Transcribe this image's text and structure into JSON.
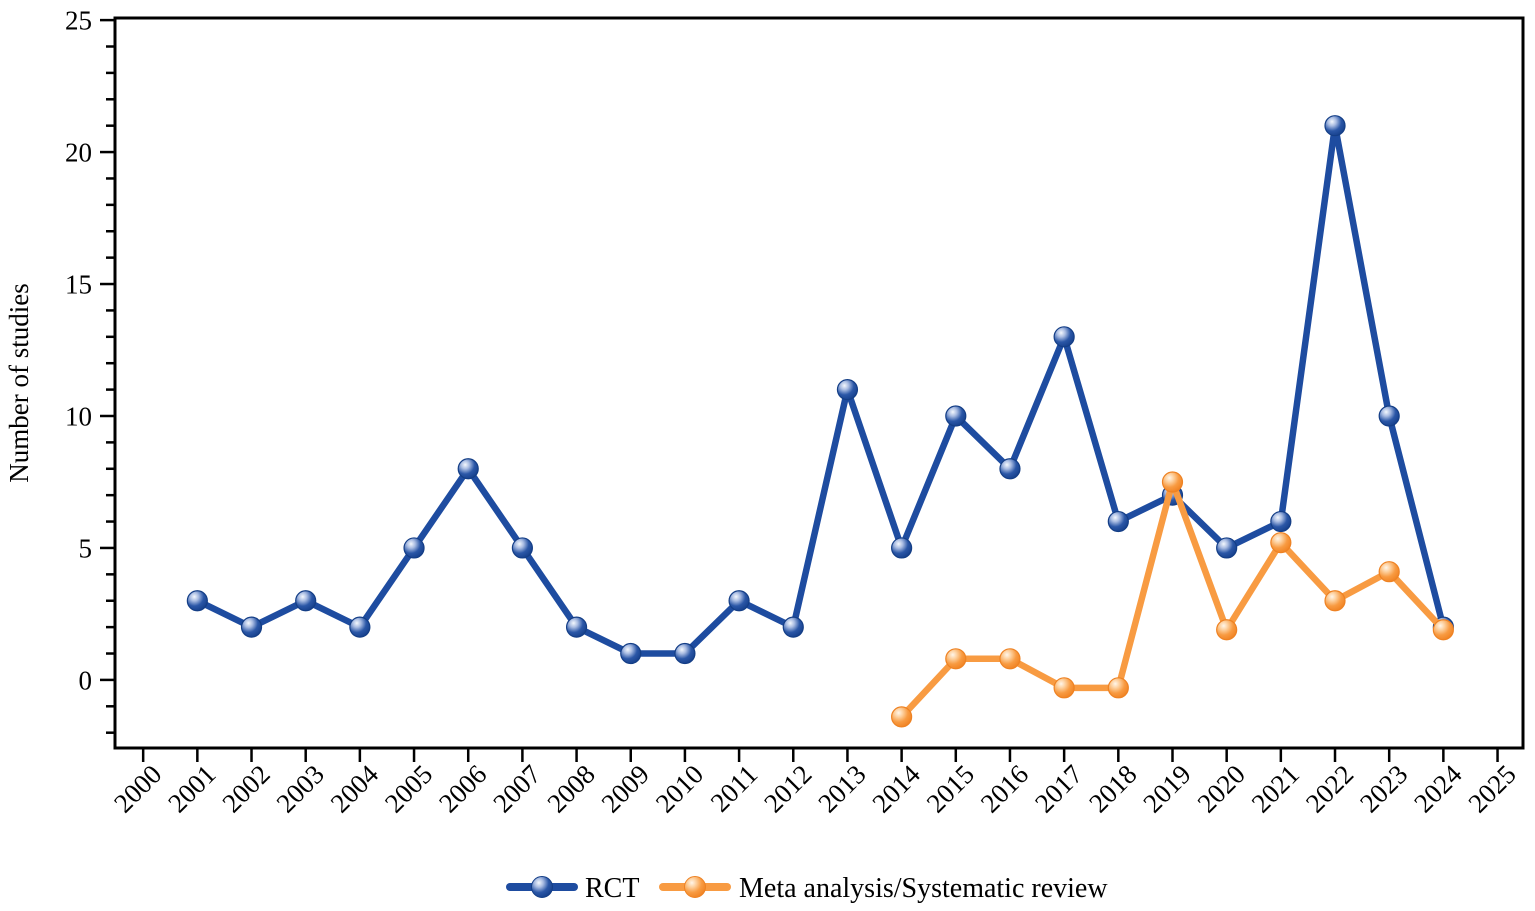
{
  "figure": {
    "ylabel": "Number of studies",
    "y_major_ticks": [
      0,
      5,
      10,
      15,
      20,
      25
    ],
    "y_minor_step": 1,
    "x_ticks": [
      2000,
      2001,
      2002,
      2003,
      2004,
      2005,
      2006,
      2007,
      2008,
      2009,
      2010,
      2011,
      2012,
      2013,
      2014,
      2015,
      2016,
      2017,
      2018,
      2019,
      2020,
      2021,
      2022,
      2023,
      2024,
      2025
    ],
    "xlim": [
      1999.48,
      2025.47
    ],
    "ylim": [
      -2.58,
      25.08
    ],
    "axis_color": "#000000",
    "background": "#ffffff"
  },
  "legend": {
    "items": [
      {
        "label": "RCT",
        "color": "#1E4CA0"
      },
      {
        "label": "Meta analysis/Systematic review",
        "color": "#F89B42"
      }
    ]
  },
  "chart_data": {
    "type": "line",
    "title": "",
    "xlabel": "",
    "ylabel": "Number of studies",
    "xlim": [
      1999.48,
      2025.47
    ],
    "ylim": [
      -2.58,
      25.08
    ],
    "grid": false,
    "legend_position": "bottom-center",
    "categories": [
      2000,
      2001,
      2002,
      2003,
      2004,
      2005,
      2006,
      2007,
      2008,
      2009,
      2010,
      2011,
      2012,
      2013,
      2014,
      2015,
      2016,
      2017,
      2018,
      2019,
      2020,
      2021,
      2022,
      2023,
      2024,
      2025
    ],
    "series": [
      {
        "name": "RCT",
        "color": "#1E4CA0",
        "edge_color": "#143E86",
        "x": [
          2001,
          2002,
          2003,
          2004,
          2005,
          2006,
          2007,
          2008,
          2009,
          2010,
          2011,
          2012,
          2013,
          2014,
          2015,
          2016,
          2017,
          2018,
          2019,
          2020,
          2021,
          2022,
          2023,
          2024
        ],
        "values": [
          3,
          2,
          3,
          2,
          5,
          8,
          5,
          2,
          1,
          1,
          3,
          2,
          11,
          5,
          10,
          8,
          13,
          6,
          7,
          5,
          6,
          21,
          10,
          2
        ]
      },
      {
        "name": "Meta analysis/Systematic review",
        "color": "#F89B42",
        "edge_color": "#EE8223",
        "x": [
          2014,
          2015,
          2016,
          2017,
          2018,
          2019,
          2020,
          2021,
          2022,
          2023,
          2024
        ],
        "values": [
          -1.4,
          0.8,
          0.8,
          -0.3,
          -0.3,
          7.5,
          1.9,
          5.2,
          3,
          4.1,
          1.9
        ]
      }
    ]
  }
}
